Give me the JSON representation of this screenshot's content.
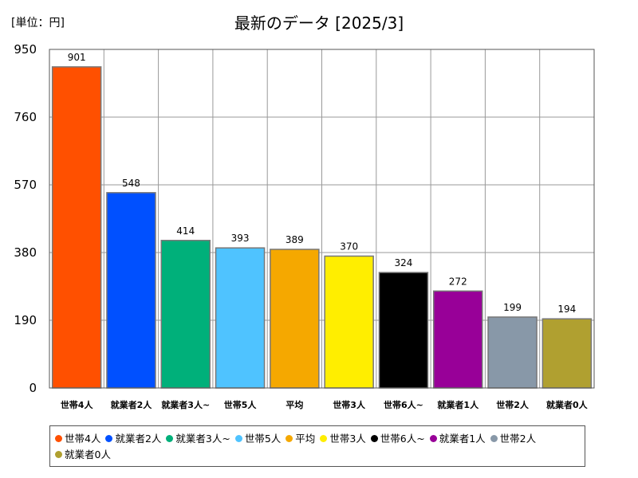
{
  "unit_label": "[単位：円]",
  "chart_data": {
    "type": "bar",
    "title": "最新のデータ [2025/3]",
    "categories": [
      "世帯4人",
      "就業者2人",
      "就業者3人~",
      "世帯5人",
      "平均",
      "世帯3人",
      "世帯6人~",
      "就業者1人",
      "世帯2人",
      "就業者0人"
    ],
    "values": [
      901,
      548,
      414,
      393,
      389,
      370,
      324,
      272,
      199,
      194
    ],
    "colors": [
      "#ff5000",
      "#0050ff",
      "#00b07a",
      "#4fc3ff",
      "#f5a800",
      "#ffee00",
      "#000000",
      "#980098",
      "#8898a8",
      "#b0a030"
    ],
    "ylim": [
      0,
      950
    ],
    "yticks": [
      0,
      190,
      380,
      570,
      760,
      950
    ],
    "grid": true,
    "legend_position": "bottom",
    "data_labels": true
  }
}
